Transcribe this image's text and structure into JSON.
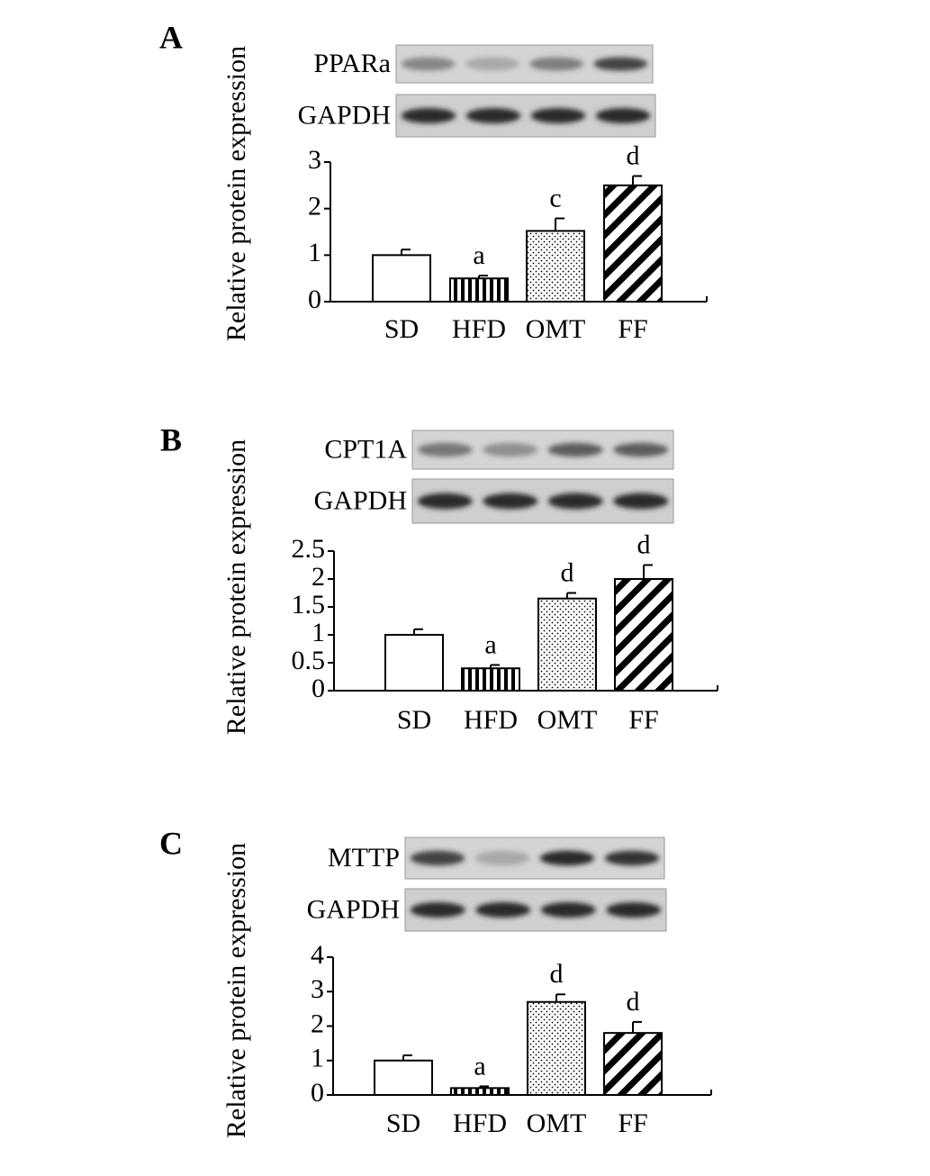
{
  "chart_data": [
    {
      "type": "bar",
      "panel": "A",
      "blots": [
        "PPARa",
        "GAPDH"
      ],
      "y_label": "Relative protein expression",
      "categories": [
        "SD",
        "HFD",
        "OMT",
        "FF"
      ],
      "values": [
        1.0,
        0.5,
        1.52,
        2.5
      ],
      "errors": [
        0.12,
        0.06,
        0.27,
        0.2
      ],
      "annotations": [
        null,
        "a",
        "c",
        "d"
      ],
      "ylim": [
        0,
        3
      ],
      "yticks": [
        0,
        1,
        2,
        3
      ],
      "bar_patterns": [
        "white",
        "vertical",
        "dots",
        "diagonal"
      ],
      "color": "#000000"
    },
    {
      "type": "bar",
      "panel": "B",
      "blots": [
        "CPT1A",
        "GAPDH"
      ],
      "y_label": "Relative protein expression",
      "categories": [
        "SD",
        "HFD",
        "OMT",
        "FF"
      ],
      "values": [
        1.0,
        0.4,
        1.65,
        2.0
      ],
      "errors": [
        0.1,
        0.06,
        0.1,
        0.25
      ],
      "annotations": [
        null,
        "a",
        "d",
        "d"
      ],
      "ylim": [
        0,
        2.5
      ],
      "yticks": [
        0,
        0.5,
        1,
        1.5,
        2,
        2.5
      ],
      "bar_patterns": [
        "white",
        "vertical",
        "dots",
        "diagonal"
      ],
      "color": "#000000"
    },
    {
      "type": "bar",
      "panel": "C",
      "blots": [
        "MTTP",
        "GAPDH"
      ],
      "y_label": "Relative protein expression",
      "categories": [
        "SD",
        "HFD",
        "OMT",
        "FF"
      ],
      "values": [
        1.0,
        0.2,
        2.7,
        1.8
      ],
      "errors": [
        0.15,
        0.05,
        0.22,
        0.32
      ],
      "annotations": [
        null,
        "a",
        "d",
        "d"
      ],
      "ylim": [
        0,
        4
      ],
      "yticks": [
        0,
        1,
        2,
        3,
        4
      ],
      "bar_patterns": [
        "white",
        "vertical",
        "dots",
        "diagonal"
      ],
      "color": "#000000"
    }
  ]
}
